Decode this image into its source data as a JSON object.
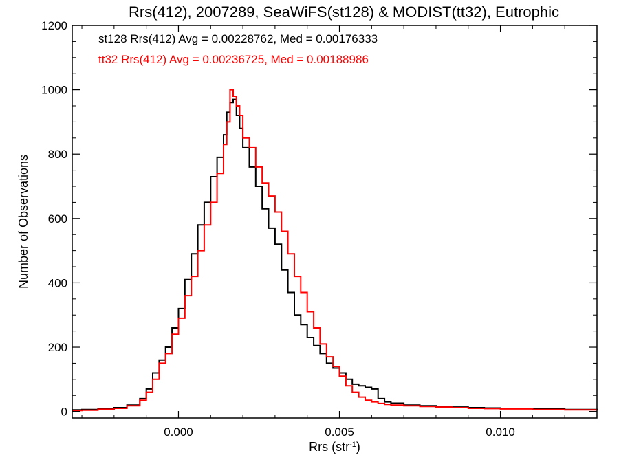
{
  "chart_data": {
    "type": "line",
    "title": "Rrs(412), 2007289, SeaWiFS(st128) & MODIST(tt32), Eutrophic",
    "xlabel": "Rrs (str",
    "xlabel_sup": "-1",
    "xlabel_close": ")",
    "ylabel": "Number of Observations",
    "xlim": [
      -0.0033,
      0.013
    ],
    "ylim": [
      -20,
      1200
    ],
    "x_ticks": [
      0.0,
      0.005,
      0.01
    ],
    "x_tick_labels": [
      "0.000",
      "0.005",
      "0.010"
    ],
    "y_ticks": [
      0,
      200,
      400,
      600,
      800,
      1000,
      1200
    ],
    "y_tick_labels": [
      "0",
      "200",
      "400",
      "600",
      "800",
      "1000",
      "1200"
    ],
    "grid": false,
    "legend_placement": "top-left",
    "series": [
      {
        "name": "st128",
        "color": "#000000",
        "stat_label": "st128 Rrs(412) Avg = 0.00228762, Med = 0.00176333",
        "points": [
          [
            -0.0033,
            5
          ],
          [
            -0.003,
            6
          ],
          [
            -0.0025,
            8
          ],
          [
            -0.002,
            12
          ],
          [
            -0.0016,
            20
          ],
          [
            -0.0012,
            40
          ],
          [
            -0.001,
            70
          ],
          [
            -0.0008,
            120
          ],
          [
            -0.0006,
            160
          ],
          [
            -0.0004,
            200
          ],
          [
            -0.0002,
            260
          ],
          [
            0.0,
            320
          ],
          [
            0.0002,
            410
          ],
          [
            0.0004,
            490
          ],
          [
            0.0006,
            580
          ],
          [
            0.0008,
            650
          ],
          [
            0.001,
            730
          ],
          [
            0.0012,
            790
          ],
          [
            0.0014,
            860
          ],
          [
            0.0015,
            930
          ],
          [
            0.0016,
            960
          ],
          [
            0.0017,
            970
          ],
          [
            0.0018,
            920
          ],
          [
            0.0019,
            880
          ],
          [
            0.002,
            820
          ],
          [
            0.0022,
            760
          ],
          [
            0.0024,
            700
          ],
          [
            0.0026,
            630
          ],
          [
            0.0028,
            570
          ],
          [
            0.003,
            520
          ],
          [
            0.0032,
            440
          ],
          [
            0.0034,
            370
          ],
          [
            0.0036,
            300
          ],
          [
            0.0038,
            270
          ],
          [
            0.004,
            230
          ],
          [
            0.0042,
            205
          ],
          [
            0.0044,
            180
          ],
          [
            0.0046,
            150
          ],
          [
            0.0048,
            135
          ],
          [
            0.005,
            120
          ],
          [
            0.0052,
            100
          ],
          [
            0.0054,
            85
          ],
          [
            0.0056,
            80
          ],
          [
            0.0058,
            75
          ],
          [
            0.006,
            70
          ],
          [
            0.0062,
            40
          ],
          [
            0.0064,
            30
          ],
          [
            0.0066,
            26
          ],
          [
            0.007,
            20
          ],
          [
            0.0075,
            18
          ],
          [
            0.008,
            16
          ],
          [
            0.0085,
            14
          ],
          [
            0.009,
            12
          ],
          [
            0.0095,
            11
          ],
          [
            0.01,
            10
          ],
          [
            0.011,
            8
          ],
          [
            0.012,
            6
          ],
          [
            0.013,
            4
          ]
        ]
      },
      {
        "name": "tt32",
        "color": "#ff0000",
        "stat_label": "tt32 Rrs(412) Avg = 0.00236725, Med = 0.00188986",
        "points": [
          [
            -0.0033,
            3
          ],
          [
            -0.003,
            4
          ],
          [
            -0.0025,
            7
          ],
          [
            -0.002,
            10
          ],
          [
            -0.0016,
            18
          ],
          [
            -0.0012,
            35
          ],
          [
            -0.001,
            60
          ],
          [
            -0.0008,
            100
          ],
          [
            -0.0006,
            150
          ],
          [
            -0.0004,
            180
          ],
          [
            -0.0002,
            240
          ],
          [
            0.0,
            290
          ],
          [
            0.0002,
            360
          ],
          [
            0.0004,
            420
          ],
          [
            0.0006,
            500
          ],
          [
            0.0008,
            580
          ],
          [
            0.001,
            650
          ],
          [
            0.0012,
            740
          ],
          [
            0.0014,
            830
          ],
          [
            0.0015,
            900
          ],
          [
            0.0016,
            1000
          ],
          [
            0.0017,
            980
          ],
          [
            0.0018,
            950
          ],
          [
            0.0019,
            920
          ],
          [
            0.002,
            850
          ],
          [
            0.0022,
            820
          ],
          [
            0.0024,
            760
          ],
          [
            0.0026,
            710
          ],
          [
            0.0028,
            670
          ],
          [
            0.003,
            620
          ],
          [
            0.0032,
            560
          ],
          [
            0.0034,
            490
          ],
          [
            0.0036,
            420
          ],
          [
            0.0038,
            370
          ],
          [
            0.004,
            310
          ],
          [
            0.0042,
            260
          ],
          [
            0.0044,
            210
          ],
          [
            0.0046,
            170
          ],
          [
            0.0048,
            140
          ],
          [
            0.005,
            110
          ],
          [
            0.0052,
            80
          ],
          [
            0.0054,
            60
          ],
          [
            0.0056,
            45
          ],
          [
            0.0058,
            35
          ],
          [
            0.006,
            30
          ],
          [
            0.0062,
            25
          ],
          [
            0.0064,
            22
          ],
          [
            0.0066,
            20
          ],
          [
            0.007,
            18
          ],
          [
            0.0075,
            16
          ],
          [
            0.008,
            14
          ],
          [
            0.0085,
            12
          ],
          [
            0.009,
            10
          ],
          [
            0.0095,
            9
          ],
          [
            0.01,
            8
          ],
          [
            0.011,
            6
          ],
          [
            0.012,
            5
          ],
          [
            0.013,
            3
          ]
        ]
      }
    ]
  }
}
